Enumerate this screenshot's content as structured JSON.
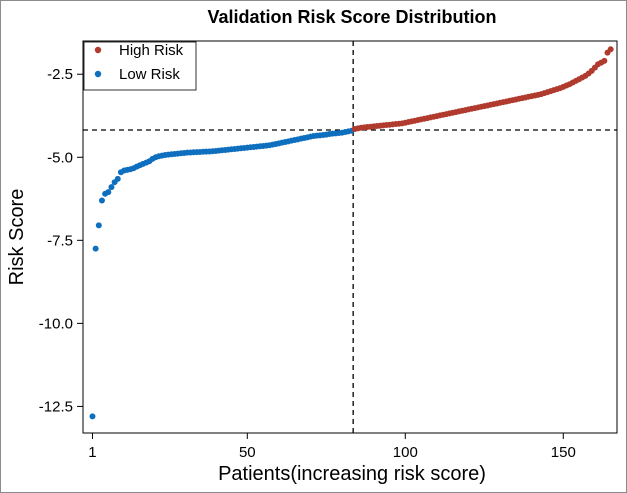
{
  "chart_data": {
    "type": "scatter",
    "title": "Validation Risk Score Distribution",
    "xlabel": "Patients(increasing risk score)",
    "ylabel": "Risk Score",
    "xlim": [
      -2,
      167
    ],
    "ylim": [
      -13.3,
      -1.5
    ],
    "x_ticks": [
      1,
      50,
      100,
      150
    ],
    "y_ticks": [
      -2.5,
      -5.0,
      -7.5,
      -10.0,
      -12.5
    ],
    "x_tick_labels": [
      "1",
      "50",
      "100",
      "150"
    ],
    "y_tick_labels": [
      "-2.5",
      "-5.0",
      "-7.5",
      "-10.0",
      "-12.5"
    ],
    "threshold": {
      "x": 83.5,
      "y": -4.18
    },
    "grid": false,
    "legend": {
      "position": "top-left"
    },
    "colors": {
      "high_risk": "#b03a2e",
      "low_risk": "#0f6fbf"
    },
    "series": [
      {
        "name": "Low Risk",
        "color": "#0f6fbf",
        "x": [
          1,
          2,
          3,
          4,
          5,
          6,
          7,
          8,
          9,
          10,
          11,
          12,
          13,
          14,
          15,
          16,
          17,
          18,
          19,
          20,
          21,
          22,
          23,
          24,
          25,
          26,
          27,
          28,
          29,
          30,
          31,
          32,
          33,
          34,
          35,
          36,
          37,
          38,
          39,
          40,
          41,
          42,
          43,
          44,
          45,
          46,
          47,
          48,
          49,
          50,
          51,
          52,
          53,
          54,
          55,
          56,
          57,
          58,
          59,
          60,
          61,
          62,
          63,
          64,
          65,
          66,
          67,
          68,
          69,
          70,
          71,
          72,
          73,
          74,
          75,
          76,
          77,
          78,
          79,
          80,
          81,
          82,
          83
        ],
        "y": [
          -12.8,
          -7.75,
          -7.05,
          -6.3,
          -6.1,
          -6.05,
          -5.9,
          -5.75,
          -5.65,
          -5.45,
          -5.4,
          -5.38,
          -5.36,
          -5.33,
          -5.28,
          -5.24,
          -5.2,
          -5.16,
          -5.12,
          -5.05,
          -5.0,
          -4.97,
          -4.95,
          -4.93,
          -4.92,
          -4.91,
          -4.9,
          -4.89,
          -4.88,
          -4.87,
          -4.86,
          -4.855,
          -4.85,
          -4.845,
          -4.84,
          -4.835,
          -4.83,
          -4.825,
          -4.82,
          -4.81,
          -4.8,
          -4.79,
          -4.78,
          -4.77,
          -4.76,
          -4.75,
          -4.74,
          -4.73,
          -4.72,
          -4.71,
          -4.7,
          -4.69,
          -4.68,
          -4.67,
          -4.66,
          -4.65,
          -4.64,
          -4.62,
          -4.6,
          -4.58,
          -4.56,
          -4.54,
          -4.52,
          -4.5,
          -4.48,
          -4.46,
          -4.44,
          -4.42,
          -4.4,
          -4.38,
          -4.36,
          -4.35,
          -4.34,
          -4.33,
          -4.32,
          -4.3,
          -4.29,
          -4.28,
          -4.27,
          -4.26,
          -4.24,
          -4.22,
          -4.2
        ]
      },
      {
        "name": "High Risk",
        "color": "#b03a2e",
        "x": [
          84,
          85,
          86,
          87,
          88,
          89,
          90,
          91,
          92,
          93,
          94,
          95,
          96,
          97,
          98,
          99,
          100,
          101,
          102,
          103,
          104,
          105,
          106,
          107,
          108,
          109,
          110,
          111,
          112,
          113,
          114,
          115,
          116,
          117,
          118,
          119,
          120,
          121,
          122,
          123,
          124,
          125,
          126,
          127,
          128,
          129,
          130,
          131,
          132,
          133,
          134,
          135,
          136,
          137,
          138,
          139,
          140,
          141,
          142,
          143,
          144,
          145,
          146,
          147,
          148,
          149,
          150,
          151,
          152,
          153,
          154,
          155,
          156,
          157,
          158,
          159,
          160,
          161,
          162,
          163,
          164,
          165
        ],
        "y": [
          -4.15,
          -4.13,
          -4.11,
          -4.1,
          -4.09,
          -4.08,
          -4.07,
          -4.06,
          -4.05,
          -4.04,
          -4.03,
          -4.02,
          -4.01,
          -4.0,
          -3.99,
          -3.98,
          -3.96,
          -3.94,
          -3.92,
          -3.9,
          -3.88,
          -3.86,
          -3.84,
          -3.82,
          -3.8,
          -3.78,
          -3.76,
          -3.74,
          -3.72,
          -3.7,
          -3.68,
          -3.66,
          -3.64,
          -3.62,
          -3.6,
          -3.58,
          -3.56,
          -3.54,
          -3.52,
          -3.5,
          -3.48,
          -3.46,
          -3.44,
          -3.42,
          -3.4,
          -3.38,
          -3.36,
          -3.34,
          -3.32,
          -3.3,
          -3.28,
          -3.26,
          -3.24,
          -3.22,
          -3.2,
          -3.18,
          -3.16,
          -3.14,
          -3.12,
          -3.1,
          -3.07,
          -3.04,
          -3.01,
          -2.98,
          -2.95,
          -2.92,
          -2.88,
          -2.84,
          -2.8,
          -2.75,
          -2.7,
          -2.65,
          -2.6,
          -2.55,
          -2.48,
          -2.4,
          -2.3,
          -2.2,
          -2.15,
          -2.1,
          -1.85,
          -1.75
        ]
      }
    ]
  }
}
